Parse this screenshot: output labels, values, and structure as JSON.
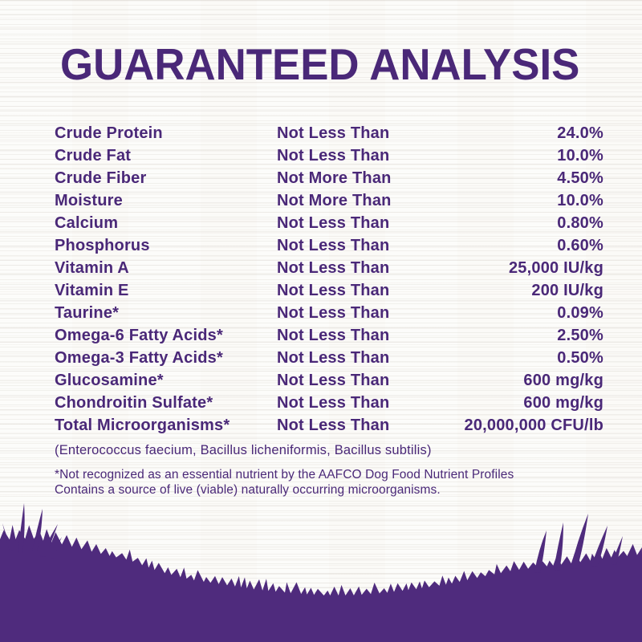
{
  "colors": {
    "text_purple": "#4a2878",
    "grass_purple": "#4f2b7d",
    "background": "#fbfaf7"
  },
  "header": {
    "title": "GUARANTEED ANALYSIS"
  },
  "analysis_table": {
    "rows": [
      {
        "nutrient": "Crude Protein",
        "qualifier": "Not Less Than",
        "value": "24.0%"
      },
      {
        "nutrient": "Crude Fat",
        "qualifier": "Not Less Than",
        "value": "10.0%"
      },
      {
        "nutrient": "Crude Fiber",
        "qualifier": "Not More Than",
        "value": "4.50%"
      },
      {
        "nutrient": "Moisture",
        "qualifier": "Not More Than",
        "value": "10.0%"
      },
      {
        "nutrient": "Calcium",
        "qualifier": "Not Less Than",
        "value": "0.80%"
      },
      {
        "nutrient": "Phosphorus",
        "qualifier": "Not Less Than",
        "value": "0.60%"
      },
      {
        "nutrient": "Vitamin A",
        "qualifier": "Not Less Than",
        "value": "25,000 IU/kg"
      },
      {
        "nutrient": "Vitamin E",
        "qualifier": "Not Less Than",
        "value": "200 IU/kg"
      },
      {
        "nutrient": "Taurine*",
        "qualifier": "Not Less Than",
        "value": "0.09%"
      },
      {
        "nutrient": "Omega-6 Fatty Acids*",
        "qualifier": "Not Less Than",
        "value": "2.50%"
      },
      {
        "nutrient": "Omega-3 Fatty Acids*",
        "qualifier": "Not Less Than",
        "value": "0.50%"
      },
      {
        "nutrient": "Glucosamine*",
        "qualifier": "Not Less Than",
        "value": "600 mg/kg"
      },
      {
        "nutrient": "Chondroitin Sulfate*",
        "qualifier": "Not Less Than",
        "value": "600 mg/kg"
      },
      {
        "nutrient": "Total Microorganisms*",
        "qualifier": "Not Less Than",
        "value": "20,000,000 CFU/lb"
      }
    ]
  },
  "microorganisms_note": "(Enterococcus faecium, Bacillus licheniformis, Bacillus subtilis)",
  "footnote": {
    "line1": "*Not recognized as an essential nutrient by the AAFCO Dog Food Nutrient Profiles",
    "line2": "Contains a source of live (viable) naturally occurring microorganisms."
  }
}
